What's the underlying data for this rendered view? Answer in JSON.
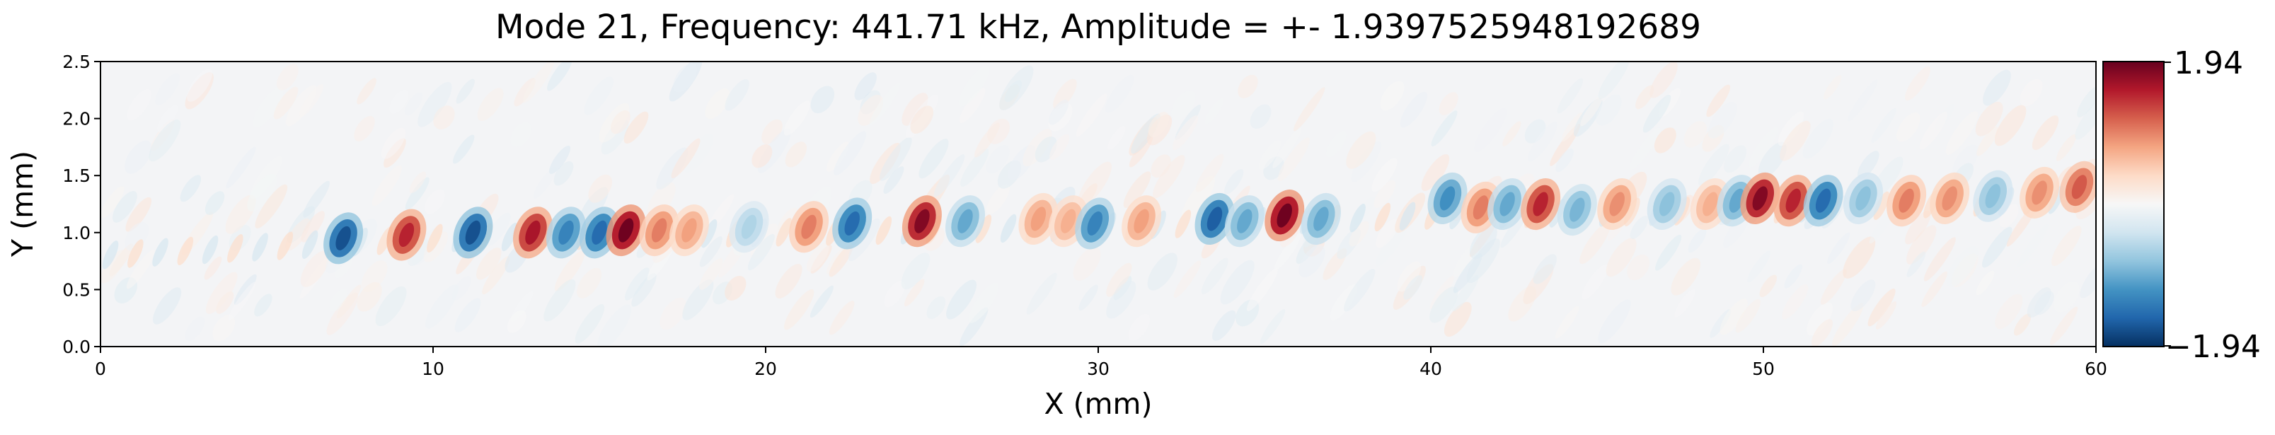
{
  "chart_data": {
    "type": "heatmap",
    "title": "Mode 21, Frequency: 441.71 kHz, Amplitude = +- 1.9397525948192689",
    "xlabel": "X (mm)",
    "ylabel": "Y (mm)",
    "xlim": [
      0,
      60
    ],
    "ylim": [
      0,
      2.5
    ],
    "x_ticks": [
      "0",
      "10",
      "20",
      "30",
      "40",
      "50",
      "60"
    ],
    "y_ticks": [
      "0.0",
      "0.5",
      "1.0",
      "1.5",
      "2.0",
      "2.5"
    ],
    "colormap": "RdBu_r",
    "colorbar": {
      "min": -1.94,
      "max": 1.94,
      "min_label": "−1.94",
      "max_label": "1.94"
    },
    "band_center_y": [
      {
        "x": 0,
        "y": 0.8
      },
      {
        "x": 10,
        "y": 0.95
      },
      {
        "x": 20,
        "y": 1.0
      },
      {
        "x": 30,
        "y": 1.05
      },
      {
        "x": 40,
        "y": 1.15
      },
      {
        "x": 50,
        "y": 1.2
      },
      {
        "x": 60,
        "y": 1.3
      }
    ],
    "blobs": [
      {
        "x": 7.3,
        "y": 0.95,
        "v": -1.7
      },
      {
        "x": 9.2,
        "y": 0.98,
        "v": 1.5
      },
      {
        "x": 11.2,
        "y": 1.0,
        "v": -1.7
      },
      {
        "x": 13.0,
        "y": 1.0,
        "v": 1.6
      },
      {
        "x": 14.0,
        "y": 1.0,
        "v": -1.3
      },
      {
        "x": 15.0,
        "y": 1.0,
        "v": -1.5
      },
      {
        "x": 15.8,
        "y": 1.02,
        "v": 1.9
      },
      {
        "x": 16.8,
        "y": 1.02,
        "v": 1.0
      },
      {
        "x": 17.7,
        "y": 1.02,
        "v": 0.8
      },
      {
        "x": 19.5,
        "y": 1.05,
        "v": -0.6
      },
      {
        "x": 21.3,
        "y": 1.05,
        "v": 1.0
      },
      {
        "x": 22.6,
        "y": 1.08,
        "v": -1.5
      },
      {
        "x": 24.7,
        "y": 1.1,
        "v": 1.8
      },
      {
        "x": 26.0,
        "y": 1.1,
        "v": -1.0
      },
      {
        "x": 28.2,
        "y": 1.12,
        "v": 0.8
      },
      {
        "x": 29.1,
        "y": 1.1,
        "v": 0.7
      },
      {
        "x": 29.9,
        "y": 1.08,
        "v": -1.3
      },
      {
        "x": 31.3,
        "y": 1.1,
        "v": 0.8
      },
      {
        "x": 33.5,
        "y": 1.12,
        "v": -1.6
      },
      {
        "x": 34.4,
        "y": 1.1,
        "v": -1.0
      },
      {
        "x": 35.6,
        "y": 1.15,
        "v": 1.9
      },
      {
        "x": 36.7,
        "y": 1.12,
        "v": -1.0
      },
      {
        "x": 40.5,
        "y": 1.3,
        "v": -1.2
      },
      {
        "x": 41.5,
        "y": 1.22,
        "v": 1.0
      },
      {
        "x": 42.3,
        "y": 1.25,
        "v": -1.0
      },
      {
        "x": 43.3,
        "y": 1.25,
        "v": 1.5
      },
      {
        "x": 44.4,
        "y": 1.2,
        "v": -0.9
      },
      {
        "x": 45.6,
        "y": 1.25,
        "v": 0.9
      },
      {
        "x": 47.1,
        "y": 1.25,
        "v": -0.8
      },
      {
        "x": 48.4,
        "y": 1.25,
        "v": 0.7
      },
      {
        "x": 49.2,
        "y": 1.28,
        "v": -1.0
      },
      {
        "x": 49.9,
        "y": 1.3,
        "v": 1.8
      },
      {
        "x": 50.9,
        "y": 1.28,
        "v": 1.5
      },
      {
        "x": 51.8,
        "y": 1.28,
        "v": -1.5
      },
      {
        "x": 53.0,
        "y": 1.3,
        "v": -0.8
      },
      {
        "x": 54.3,
        "y": 1.28,
        "v": 1.0
      },
      {
        "x": 55.6,
        "y": 1.3,
        "v": 0.9
      },
      {
        "x": 56.9,
        "y": 1.32,
        "v": -0.8
      },
      {
        "x": 58.3,
        "y": 1.35,
        "v": 0.9
      },
      {
        "x": 59.5,
        "y": 1.4,
        "v": 1.2
      }
    ]
  }
}
